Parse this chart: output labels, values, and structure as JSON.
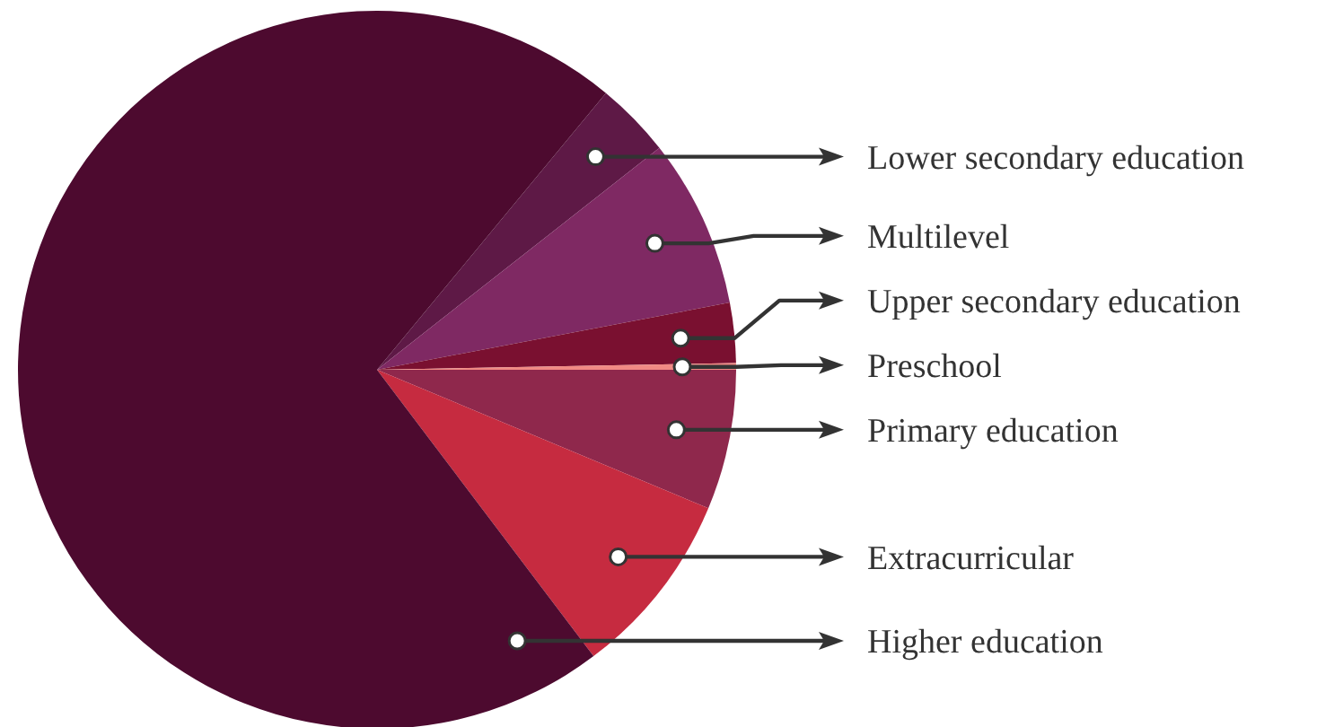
{
  "chart_data": {
    "type": "pie",
    "categories": [
      "Lower secondary education",
      "Multilevel",
      "Upper secondary education",
      "Preschool",
      "Primary education",
      "Extracurricular",
      "Higher education"
    ],
    "values": [
      3.4,
      7.6,
      2.7,
      0.3,
      6.3,
      8.4,
      71.3
    ],
    "colors": [
      "#5e1946",
      "#7f2963",
      "#7a1030",
      "#f08a84",
      "#8f284c",
      "#c62b40",
      "#4d0a2f"
    ]
  }
}
